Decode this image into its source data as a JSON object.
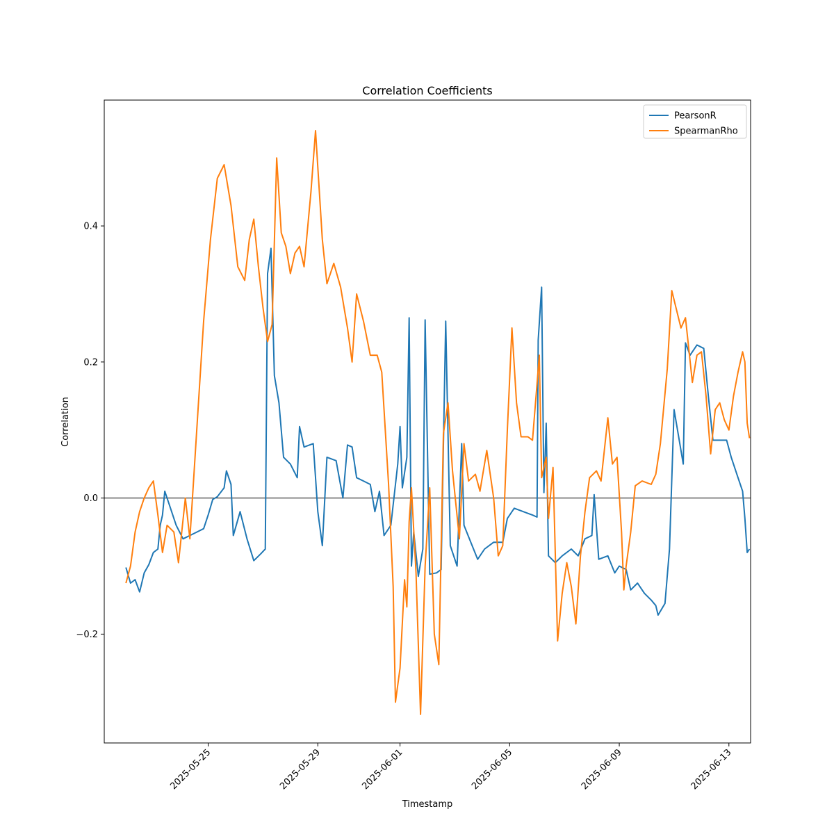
{
  "chart_data": {
    "type": "line",
    "title": "Correlation Coefficients",
    "xlabel": "Timestamp",
    "ylabel": "Correlation",
    "xlim": [
      "2025-05-21T05:00",
      "2025-06-13T19:00"
    ],
    "ylim": [
      -0.36,
      0.585
    ],
    "x_ticks": [
      "2025-05-25",
      "2025-05-29",
      "2025-06-01",
      "2025-06-05",
      "2025-06-09",
      "2025-06-13"
    ],
    "y_ticks": [
      -0.2,
      0.0,
      0.2,
      0.4
    ],
    "y_tick_labels": [
      "−0.2",
      "0.0",
      "0.2",
      "0.4"
    ],
    "reference_line": 0.0,
    "legend_position": "top-right",
    "grid": false,
    "series": [
      {
        "name": "PearsonR",
        "color": "#1f77b4",
        "points": [
          [
            "2025-05-22T00:00",
            -0.102
          ],
          [
            "2025-05-22T04:00",
            -0.125
          ],
          [
            "2025-05-22T08:00",
            -0.12
          ],
          [
            "2025-05-22T12:00",
            -0.138
          ],
          [
            "2025-05-22T16:00",
            -0.11
          ],
          [
            "2025-05-22T20:00",
            -0.098
          ],
          [
            "2025-05-23T00:00",
            -0.08
          ],
          [
            "2025-05-23T04:00",
            -0.075
          ],
          [
            "2025-05-23T06:00",
            -0.04
          ],
          [
            "2025-05-23T08:00",
            -0.025
          ],
          [
            "2025-05-23T10:00",
            0.01
          ],
          [
            "2025-05-23T14:00",
            -0.01
          ],
          [
            "2025-05-23T20:00",
            -0.04
          ],
          [
            "2025-05-24T02:00",
            -0.06
          ],
          [
            "2025-05-24T08:00",
            -0.055
          ],
          [
            "2025-05-24T14:00",
            -0.05
          ],
          [
            "2025-05-24T20:00",
            -0.045
          ],
          [
            "2025-05-25T00:00",
            -0.025
          ],
          [
            "2025-05-25T04:00",
            -0.002
          ],
          [
            "2025-05-25T08:00",
            0.002
          ],
          [
            "2025-05-25T14:00",
            0.015
          ],
          [
            "2025-05-25T16:00",
            0.04
          ],
          [
            "2025-05-25T20:00",
            0.02
          ],
          [
            "2025-05-25T22:00",
            -0.055
          ],
          [
            "2025-05-26T04:00",
            -0.02
          ],
          [
            "2025-05-26T10:00",
            -0.06
          ],
          [
            "2025-05-26T16:00",
            -0.092
          ],
          [
            "2025-05-26T22:00",
            -0.082
          ],
          [
            "2025-05-27T02:00",
            -0.075
          ],
          [
            "2025-05-27T04:00",
            0.33
          ],
          [
            "2025-05-27T07:00",
            0.367
          ],
          [
            "2025-05-27T10:00",
            0.18
          ],
          [
            "2025-05-27T14:00",
            0.14
          ],
          [
            "2025-05-27T18:00",
            0.06
          ],
          [
            "2025-05-28T00:00",
            0.05
          ],
          [
            "2025-05-28T06:00",
            0.03
          ],
          [
            "2025-05-28T08:00",
            0.105
          ],
          [
            "2025-05-28T12:00",
            0.075
          ],
          [
            "2025-05-28T20:00",
            0.08
          ],
          [
            "2025-05-29T00:00",
            -0.02
          ],
          [
            "2025-05-29T04:00",
            -0.07
          ],
          [
            "2025-05-29T08:00",
            0.06
          ],
          [
            "2025-05-29T16:00",
            0.055
          ],
          [
            "2025-05-29T22:00",
            0.0
          ],
          [
            "2025-05-30T02:00",
            0.078
          ],
          [
            "2025-05-30T06:00",
            0.075
          ],
          [
            "2025-05-30T10:00",
            0.03
          ],
          [
            "2025-05-30T16:00",
            0.025
          ],
          [
            "2025-05-30T22:00",
            0.02
          ],
          [
            "2025-05-31T02:00",
            -0.02
          ],
          [
            "2025-05-31T06:00",
            0.01
          ],
          [
            "2025-05-31T10:00",
            -0.055
          ],
          [
            "2025-05-31T16:00",
            -0.04
          ],
          [
            "2025-05-31T22:00",
            0.05
          ],
          [
            "2025-06-01T00:00",
            0.105
          ],
          [
            "2025-06-01T02:00",
            0.015
          ],
          [
            "2025-06-01T06:00",
            0.06
          ],
          [
            "2025-06-01T08:00",
            0.265
          ],
          [
            "2025-06-01T10:00",
            -0.1
          ],
          [
            "2025-06-01T12:00",
            -0.05
          ],
          [
            "2025-06-01T16:00",
            -0.115
          ],
          [
            "2025-06-01T20:00",
            -0.075
          ],
          [
            "2025-06-01T22:00",
            0.262
          ],
          [
            "2025-06-02T02:00",
            -0.112
          ],
          [
            "2025-06-02T08:00",
            -0.11
          ],
          [
            "2025-06-02T12:00",
            -0.105
          ],
          [
            "2025-06-02T16:00",
            0.26
          ],
          [
            "2025-06-02T20:00",
            -0.07
          ],
          [
            "2025-06-03T02:00",
            -0.1
          ],
          [
            "2025-06-03T06:00",
            0.08
          ],
          [
            "2025-06-03T08:00",
            -0.04
          ],
          [
            "2025-06-03T14:00",
            -0.065
          ],
          [
            "2025-06-03T20:00",
            -0.09
          ],
          [
            "2025-06-04T02:00",
            -0.075
          ],
          [
            "2025-06-04T10:00",
            -0.065
          ],
          [
            "2025-06-04T18:00",
            -0.065
          ],
          [
            "2025-06-04T22:00",
            -0.03
          ],
          [
            "2025-06-05T04:00",
            -0.015
          ],
          [
            "2025-06-05T12:00",
            -0.02
          ],
          [
            "2025-06-05T20:00",
            -0.025
          ],
          [
            "2025-06-06T00:00",
            -0.028
          ],
          [
            "2025-06-06T01:00",
            0.232
          ],
          [
            "2025-06-06T04:00",
            0.31
          ],
          [
            "2025-06-06T06:00",
            0.008
          ],
          [
            "2025-06-06T08:00",
            0.11
          ],
          [
            "2025-06-06T10:00",
            -0.085
          ],
          [
            "2025-06-06T16:00",
            -0.095
          ],
          [
            "2025-06-06T22:00",
            -0.085
          ],
          [
            "2025-06-07T06:00",
            -0.075
          ],
          [
            "2025-06-07T12:00",
            -0.085
          ],
          [
            "2025-06-07T18:00",
            -0.06
          ],
          [
            "2025-06-08T00:00",
            -0.055
          ],
          [
            "2025-06-08T02:00",
            0.005
          ],
          [
            "2025-06-08T06:00",
            -0.09
          ],
          [
            "2025-06-08T14:00",
            -0.085
          ],
          [
            "2025-06-08T20:00",
            -0.11
          ],
          [
            "2025-06-09T00:00",
            -0.1
          ],
          [
            "2025-06-09T06:00",
            -0.105
          ],
          [
            "2025-06-09T10:00",
            -0.135
          ],
          [
            "2025-06-09T16:00",
            -0.125
          ],
          [
            "2025-06-09T22:00",
            -0.14
          ],
          [
            "2025-06-10T04:00",
            -0.15
          ],
          [
            "2025-06-10T08:00",
            -0.158
          ],
          [
            "2025-06-10T10:00",
            -0.172
          ],
          [
            "2025-06-10T16:00",
            -0.155
          ],
          [
            "2025-06-10T20:00",
            -0.075
          ],
          [
            "2025-06-11T00:00",
            0.13
          ],
          [
            "2025-06-11T08:00",
            0.05
          ],
          [
            "2025-06-11T10:00",
            0.228
          ],
          [
            "2025-06-11T14:00",
            0.21
          ],
          [
            "2025-06-11T20:00",
            0.225
          ],
          [
            "2025-06-12T02:00",
            0.22
          ],
          [
            "2025-06-12T06:00",
            0.15
          ],
          [
            "2025-06-12T10:00",
            0.085
          ],
          [
            "2025-06-12T16:00",
            0.085
          ],
          [
            "2025-06-12T22:00",
            0.085
          ],
          [
            "2025-06-13T02:00",
            0.06
          ],
          [
            "2025-06-13T08:00",
            0.03
          ],
          [
            "2025-06-13T12:00",
            0.01
          ],
          [
            "2025-06-13T14:00",
            -0.03
          ],
          [
            "2025-06-13T16:00",
            -0.08
          ],
          [
            "2025-06-13T18:00",
            -0.075
          ]
        ]
      },
      {
        "name": "SpearmanRho",
        "color": "#ff7f0e",
        "points": [
          [
            "2025-05-22T00:00",
            -0.125
          ],
          [
            "2025-05-22T04:00",
            -0.1
          ],
          [
            "2025-05-22T08:00",
            -0.05
          ],
          [
            "2025-05-22T12:00",
            -0.02
          ],
          [
            "2025-05-22T16:00",
            0.0
          ],
          [
            "2025-05-22T20:00",
            0.015
          ],
          [
            "2025-05-23T00:00",
            0.025
          ],
          [
            "2025-05-23T04:00",
            -0.025
          ],
          [
            "2025-05-23T08:00",
            -0.08
          ],
          [
            "2025-05-23T12:00",
            -0.04
          ],
          [
            "2025-05-23T18:00",
            -0.05
          ],
          [
            "2025-05-23T22:00",
            -0.095
          ],
          [
            "2025-05-24T04:00",
            0.0
          ],
          [
            "2025-05-24T08:00",
            -0.06
          ],
          [
            "2025-05-24T14:00",
            0.1
          ],
          [
            "2025-05-24T20:00",
            0.26
          ],
          [
            "2025-05-25T02:00",
            0.38
          ],
          [
            "2025-05-25T08:00",
            0.47
          ],
          [
            "2025-05-25T14:00",
            0.49
          ],
          [
            "2025-05-25T20:00",
            0.43
          ],
          [
            "2025-05-26T02:00",
            0.34
          ],
          [
            "2025-05-26T08:00",
            0.32
          ],
          [
            "2025-05-26T12:00",
            0.38
          ],
          [
            "2025-05-26T16:00",
            0.41
          ],
          [
            "2025-05-26T20:00",
            0.34
          ],
          [
            "2025-05-27T00:00",
            0.28
          ],
          [
            "2025-05-27T04:00",
            0.23
          ],
          [
            "2025-05-27T08:00",
            0.255
          ],
          [
            "2025-05-27T12:00",
            0.5
          ],
          [
            "2025-05-27T16:00",
            0.39
          ],
          [
            "2025-05-27T20:00",
            0.37
          ],
          [
            "2025-05-28T00:00",
            0.33
          ],
          [
            "2025-05-28T04:00",
            0.36
          ],
          [
            "2025-05-28T08:00",
            0.37
          ],
          [
            "2025-05-28T12:00",
            0.34
          ],
          [
            "2025-05-28T18:00",
            0.45
          ],
          [
            "2025-05-28T22:00",
            0.54
          ],
          [
            "2025-05-29T04:00",
            0.38
          ],
          [
            "2025-05-29T08:00",
            0.315
          ],
          [
            "2025-05-29T14:00",
            0.345
          ],
          [
            "2025-05-29T20:00",
            0.31
          ],
          [
            "2025-05-30T02:00",
            0.25
          ],
          [
            "2025-05-30T06:00",
            0.2
          ],
          [
            "2025-05-30T10:00",
            0.3
          ],
          [
            "2025-05-30T16:00",
            0.26
          ],
          [
            "2025-05-30T22:00",
            0.21
          ],
          [
            "2025-05-31T04:00",
            0.21
          ],
          [
            "2025-05-31T08:00",
            0.185
          ],
          [
            "2025-05-31T14:00",
            0.02
          ],
          [
            "2025-05-31T18:00",
            -0.13
          ],
          [
            "2025-05-31T20:00",
            -0.3
          ],
          [
            "2025-06-01T00:00",
            -0.25
          ],
          [
            "2025-06-01T04:00",
            -0.12
          ],
          [
            "2025-06-01T06:00",
            -0.16
          ],
          [
            "2025-06-01T08:00",
            -0.035
          ],
          [
            "2025-06-01T10:00",
            0.015
          ],
          [
            "2025-06-01T14:00",
            -0.11
          ],
          [
            "2025-06-01T18:00",
            -0.318
          ],
          [
            "2025-06-01T22:00",
            -0.1
          ],
          [
            "2025-06-02T02:00",
            0.015
          ],
          [
            "2025-06-02T06:00",
            -0.2
          ],
          [
            "2025-06-02T10:00",
            -0.245
          ],
          [
            "2025-06-02T14:00",
            0.095
          ],
          [
            "2025-06-02T18:00",
            0.14
          ],
          [
            "2025-06-02T22:00",
            0.04
          ],
          [
            "2025-06-03T04:00",
            -0.06
          ],
          [
            "2025-06-03T08:00",
            0.08
          ],
          [
            "2025-06-03T12:00",
            0.025
          ],
          [
            "2025-06-03T18:00",
            0.035
          ],
          [
            "2025-06-03T22:00",
            0.01
          ],
          [
            "2025-06-04T04:00",
            0.07
          ],
          [
            "2025-06-04T10:00",
            0.0
          ],
          [
            "2025-06-04T14:00",
            -0.085
          ],
          [
            "2025-06-04T18:00",
            -0.07
          ],
          [
            "2025-06-04T22:00",
            0.1
          ],
          [
            "2025-06-05T02:00",
            0.25
          ],
          [
            "2025-06-05T06:00",
            0.14
          ],
          [
            "2025-06-05T10:00",
            0.09
          ],
          [
            "2025-06-05T16:00",
            0.09
          ],
          [
            "2025-06-05T20:00",
            0.085
          ],
          [
            "2025-06-06T02:00",
            0.21
          ],
          [
            "2025-06-06T04:00",
            0.03
          ],
          [
            "2025-06-06T08:00",
            0.06
          ],
          [
            "2025-06-06T10:00",
            -0.03
          ],
          [
            "2025-06-06T14:00",
            0.045
          ],
          [
            "2025-06-06T18:00",
            -0.21
          ],
          [
            "2025-06-06T22:00",
            -0.14
          ],
          [
            "2025-06-07T02:00",
            -0.095
          ],
          [
            "2025-06-07T06:00",
            -0.13
          ],
          [
            "2025-06-07T10:00",
            -0.185
          ],
          [
            "2025-06-07T14:00",
            -0.085
          ],
          [
            "2025-06-07T18:00",
            -0.02
          ],
          [
            "2025-06-07T22:00",
            0.03
          ],
          [
            "2025-06-08T04:00",
            0.04
          ],
          [
            "2025-06-08T08:00",
            0.025
          ],
          [
            "2025-06-08T14:00",
            0.118
          ],
          [
            "2025-06-08T18:00",
            0.05
          ],
          [
            "2025-06-08T22:00",
            0.06
          ],
          [
            "2025-06-09T02:00",
            -0.05
          ],
          [
            "2025-06-09T04:00",
            -0.135
          ],
          [
            "2025-06-09T06:00",
            -0.1
          ],
          [
            "2025-06-09T10:00",
            -0.05
          ],
          [
            "2025-06-09T14:00",
            0.018
          ],
          [
            "2025-06-09T20:00",
            0.025
          ],
          [
            "2025-06-10T04:00",
            0.02
          ],
          [
            "2025-06-10T08:00",
            0.035
          ],
          [
            "2025-06-10T12:00",
            0.08
          ],
          [
            "2025-06-10T18:00",
            0.19
          ],
          [
            "2025-06-10T22:00",
            0.305
          ],
          [
            "2025-06-11T06:00",
            0.25
          ],
          [
            "2025-06-11T10:00",
            0.265
          ],
          [
            "2025-06-11T16:00",
            0.17
          ],
          [
            "2025-06-11T20:00",
            0.21
          ],
          [
            "2025-06-12T00:00",
            0.215
          ],
          [
            "2025-06-12T04:00",
            0.15
          ],
          [
            "2025-06-12T08:00",
            0.065
          ],
          [
            "2025-06-12T12:00",
            0.13
          ],
          [
            "2025-06-12T16:00",
            0.14
          ],
          [
            "2025-06-12T20:00",
            0.115
          ],
          [
            "2025-06-13T00:00",
            0.1
          ],
          [
            "2025-06-13T04:00",
            0.15
          ],
          [
            "2025-06-13T08:00",
            0.185
          ],
          [
            "2025-06-13T12:00",
            0.215
          ],
          [
            "2025-06-13T14:00",
            0.2
          ],
          [
            "2025-06-13T16:00",
            0.11
          ],
          [
            "2025-06-13T18:00",
            0.088
          ]
        ]
      }
    ]
  }
}
